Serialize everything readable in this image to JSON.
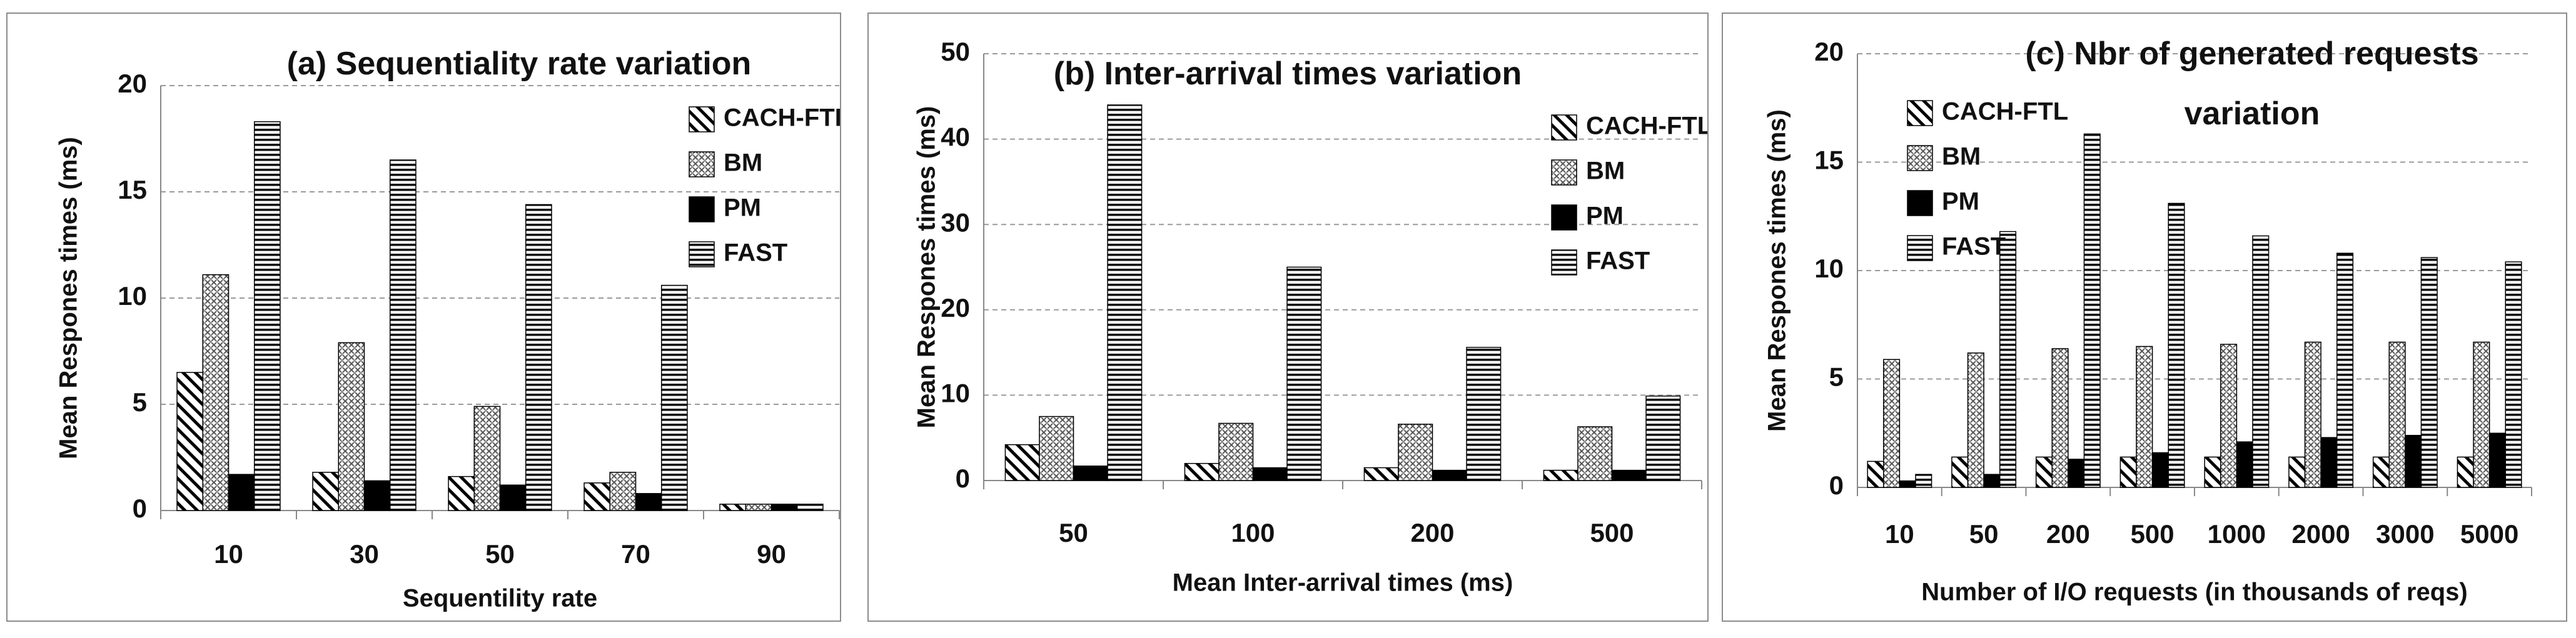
{
  "chart_data": [
    {
      "type": "bar",
      "title": "(a) Sequentiality rate variation",
      "xlabel": "Sequentility rate",
      "ylabel": "Mean Respones times (ms)",
      "categories": [
        "10",
        "30",
        "50",
        "70",
        "90"
      ],
      "series": [
        {
          "name": "CACH-FTL",
          "color": "#000000",
          "pattern": "diagonal",
          "values": [
            6.5,
            1.8,
            1.6,
            1.3,
            0.3
          ]
        },
        {
          "name": "BM",
          "color": "#000000",
          "pattern": "crosshatch",
          "values": [
            11.1,
            7.9,
            4.9,
            1.8,
            0.3
          ]
        },
        {
          "name": "PM",
          "color": "#000000",
          "pattern": "solid",
          "values": [
            1.7,
            1.4,
            1.2,
            0.8,
            0.3
          ]
        },
        {
          "name": "FAST",
          "color": "#000000",
          "pattern": "horizontal",
          "values": [
            18.3,
            16.5,
            14.4,
            10.6,
            0.3
          ]
        }
      ],
      "ylim": [
        0,
        20
      ],
      "yticks": [
        0,
        5,
        10,
        15,
        20
      ],
      "grid": true,
      "legend": "upper right"
    },
    {
      "type": "bar",
      "title": "(b) Inter-arrival times variation",
      "xlabel": "Mean Inter-arrival times (ms)",
      "ylabel": "Mean Respones times (ms)",
      "categories": [
        "50",
        "100",
        "200",
        "500"
      ],
      "series": [
        {
          "name": "CACH-FTL",
          "color": "#000000",
          "pattern": "diagonal",
          "values": [
            4.2,
            2.0,
            1.5,
            1.2
          ]
        },
        {
          "name": "BM",
          "color": "#000000",
          "pattern": "crosshatch",
          "values": [
            7.5,
            6.7,
            6.6,
            6.3
          ]
        },
        {
          "name": "PM",
          "color": "#000000",
          "pattern": "solid",
          "values": [
            1.7,
            1.5,
            1.2,
            1.2
          ]
        },
        {
          "name": "FAST",
          "color": "#000000",
          "pattern": "horizontal",
          "values": [
            44,
            25,
            15.6,
            9.9
          ]
        }
      ],
      "ylim": [
        0,
        50
      ],
      "yticks": [
        0,
        10,
        20,
        30,
        40,
        50
      ],
      "grid": true,
      "legend": "upper right"
    },
    {
      "type": "bar",
      "title": "(c) Nbr of generated requests variation",
      "xlabel": "Number of I/O requests (in thousands of reqs)",
      "ylabel": "Mean Respones times (ms)",
      "categories": [
        "10",
        "50",
        "200",
        "500",
        "1000",
        "2000",
        "3000",
        "5000"
      ],
      "series": [
        {
          "name": "CACH-FTL",
          "color": "#000000",
          "pattern": "diagonal",
          "values": [
            1.2,
            1.4,
            1.4,
            1.4,
            1.4,
            1.4,
            1.4,
            1.4
          ]
        },
        {
          "name": "BM",
          "color": "#000000",
          "pattern": "crosshatch",
          "values": [
            5.9,
            6.2,
            6.4,
            6.5,
            6.6,
            6.7,
            6.7,
            6.7
          ]
        },
        {
          "name": "PM",
          "color": "#000000",
          "pattern": "solid",
          "values": [
            0.3,
            0.6,
            1.3,
            1.6,
            2.1,
            2.3,
            2.4,
            2.5
          ]
        },
        {
          "name": "FAST",
          "color": "#000000",
          "pattern": "horizontal",
          "values": [
            0.6,
            11.8,
            16.3,
            13.1,
            11.6,
            10.8,
            10.6,
            10.4
          ]
        }
      ],
      "ylim": [
        0,
        20
      ],
      "yticks": [
        0,
        5,
        10,
        15,
        20
      ],
      "grid": true,
      "legend": "upper left"
    }
  ]
}
